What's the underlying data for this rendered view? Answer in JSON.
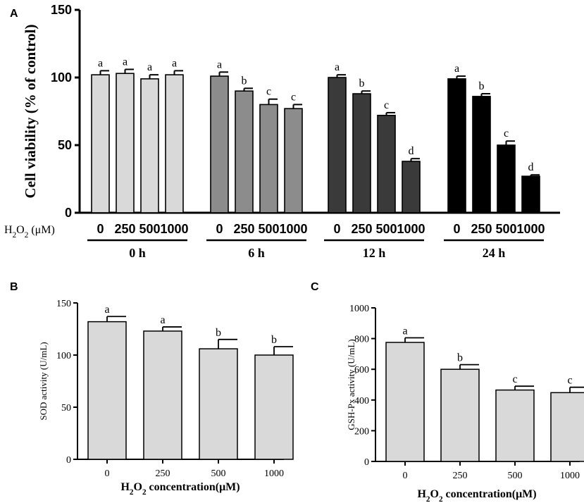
{
  "chart_data": [
    {
      "panel": "A",
      "type": "bar",
      "ylabel": "Cell viability (% of control)",
      "ylim": [
        0,
        150
      ],
      "yticks": [
        0,
        50,
        100,
        150
      ],
      "x_prefix": "H2O2 (μM)",
      "concentrations": [
        "0",
        "250",
        "500",
        "1000"
      ],
      "groups": [
        {
          "label": "0 h",
          "color": "#d9d9d9",
          "values": [
            102,
            103,
            99,
            102
          ],
          "errors": [
            3,
            3,
            3,
            3
          ],
          "letters": [
            "a",
            "a",
            "a",
            "a"
          ]
        },
        {
          "label": "6 h",
          "color": "#8c8c8c",
          "values": [
            101,
            90,
            80,
            77
          ],
          "errors": [
            3,
            2,
            4,
            3
          ],
          "letters": [
            "a",
            "b",
            "c",
            "c"
          ]
        },
        {
          "label": "12 h",
          "color": "#3a3a3a",
          "values": [
            100,
            88,
            72,
            38
          ],
          "errors": [
            2,
            2,
            2,
            2
          ],
          "letters": [
            "a",
            "b",
            "c",
            "d"
          ]
        },
        {
          "label": "24 h",
          "color": "#000000",
          "values": [
            99,
            86,
            50,
            27
          ],
          "errors": [
            2,
            2,
            3,
            1
          ],
          "letters": [
            "a",
            "b",
            "c",
            "d"
          ]
        }
      ]
    },
    {
      "panel": "B",
      "type": "bar",
      "ylabel": "SOD activity (U/mL)",
      "xlabel": "H2O2 concentration(μM)",
      "ylim": [
        0,
        150
      ],
      "yticks": [
        0,
        50,
        100,
        150
      ],
      "categories": [
        "0",
        "250",
        "500",
        "1000"
      ],
      "values": [
        132,
        123,
        106,
        100
      ],
      "errors": [
        5,
        4,
        9,
        8
      ],
      "letters": [
        "a",
        "a",
        "b",
        "b"
      ],
      "color": "#d9d9d9"
    },
    {
      "panel": "C",
      "type": "bar",
      "ylabel": "GSH-Px activity (U/mL)",
      "xlabel": "H2O2 concentration(μM)",
      "ylim": [
        0,
        1000
      ],
      "yticks": [
        0,
        200,
        400,
        600,
        800,
        1000
      ],
      "categories": [
        "0",
        "250",
        "500",
        "1000"
      ],
      "values": [
        775,
        600,
        465,
        448
      ],
      "errors": [
        30,
        30,
        25,
        35
      ],
      "letters": [
        "a",
        "b",
        "c",
        "c"
      ],
      "color": "#d9d9d9"
    }
  ],
  "panel_labels": [
    "A",
    "B",
    "C"
  ]
}
